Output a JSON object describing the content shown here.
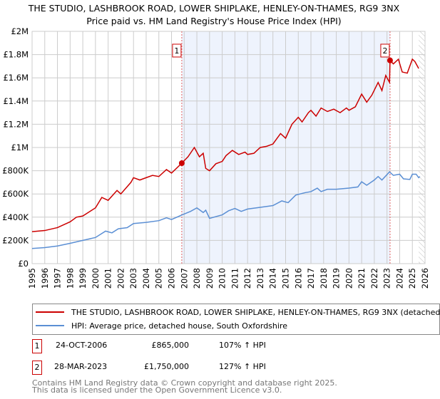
{
  "chart_data": {
    "type": "line",
    "title": "THE STUDIO, LASHBROOK ROAD, LOWER SHIPLAKE, HENLEY-ON-THAMES, RG9 3NX",
    "subtitle": "Price paid vs. HM Land Registry's House Price Index (HPI)",
    "xlim": [
      1995,
      2026
    ],
    "ylim": [
      0,
      2000000
    ],
    "grid": true,
    "x_ticks": [
      "1995",
      "1996",
      "1997",
      "1998",
      "1999",
      "2000",
      "2001",
      "2002",
      "2003",
      "2004",
      "2005",
      "2006",
      "2007",
      "2008",
      "2009",
      "2010",
      "2011",
      "2012",
      "2013",
      "2014",
      "2015",
      "2016",
      "2017",
      "2018",
      "2019",
      "2020",
      "2021",
      "2022",
      "2023",
      "2024",
      "2025",
      "2026"
    ],
    "y_ticks": [
      {
        "v": 0,
        "label": "£0"
      },
      {
        "v": 200000,
        "label": "£200K"
      },
      {
        "v": 400000,
        "label": "£400K"
      },
      {
        "v": 600000,
        "label": "£600K"
      },
      {
        "v": 800000,
        "label": "£800K"
      },
      {
        "v": 1000000,
        "label": "£1M"
      },
      {
        "v": 1200000,
        "label": "£1.2M"
      },
      {
        "v": 1400000,
        "label": "£1.4M"
      },
      {
        "v": 1600000,
        "label": "£1.6M"
      },
      {
        "v": 1800000,
        "label": "£1.8M"
      },
      {
        "v": 2000000,
        "label": "£2M"
      }
    ],
    "shaded_range": [
      2006.81,
      2023.24
    ],
    "hatched_from": 2025.5,
    "series": [
      {
        "name": "THE STUDIO, LASHBROOK ROAD, LOWER SHIPLAKE, HENLEY-ON-THAMES, RG9 3NX (detached",
        "color": "#cc0000",
        "x": [
          1995,
          1996,
          1997,
          1998,
          1998.5,
          1999,
          2000,
          2000.5,
          2001,
          2001.7,
          2002,
          2002.8,
          2003,
          2003.5,
          2004,
          2004.5,
          2005,
          2005.6,
          2006,
          2006.81,
          2007.3,
          2007.8,
          2008.2,
          2008.5,
          2008.7,
          2009,
          2009.5,
          2010,
          2010.3,
          2010.8,
          2011.3,
          2011.8,
          2012,
          2012.5,
          2013,
          2013.5,
          2014,
          2014.6,
          2015,
          2015.5,
          2016,
          2016.3,
          2016.8,
          2017,
          2017.4,
          2017.8,
          2018.3,
          2018.8,
          2019.3,
          2019.8,
          2020,
          2020.5,
          2021,
          2021.4,
          2021.8,
          2022.3,
          2022.6,
          2022.9,
          2023.2,
          2023.24,
          2023.5,
          2023.9,
          2024.2,
          2024.6,
          2025,
          2025.2,
          2025.5
        ],
        "y": [
          275000,
          285000,
          310000,
          360000,
          400000,
          410000,
          480000,
          570000,
          545000,
          630000,
          600000,
          700000,
          740000,
          720000,
          740000,
          760000,
          750000,
          810000,
          780000,
          865000,
          920000,
          1000000,
          920000,
          950000,
          820000,
          800000,
          860000,
          880000,
          930000,
          975000,
          940000,
          960000,
          940000,
          950000,
          1000000,
          1010000,
          1030000,
          1120000,
          1080000,
          1200000,
          1260000,
          1220000,
          1300000,
          1320000,
          1270000,
          1340000,
          1310000,
          1330000,
          1300000,
          1340000,
          1320000,
          1350000,
          1460000,
          1390000,
          1450000,
          1560000,
          1490000,
          1620000,
          1560000,
          1750000,
          1720000,
          1760000,
          1650000,
          1640000,
          1760000,
          1740000,
          1680000
        ]
      },
      {
        "name": "HPI: Average price, detached house, South Oxfordshire",
        "color": "#5b8fd4",
        "x": [
          1995,
          1996,
          1997,
          1998,
          1999,
          2000,
          2000.8,
          2001.3,
          2001.8,
          2002.5,
          2003,
          2004,
          2005,
          2005.6,
          2006,
          2006.8,
          2007.5,
          2008,
          2008.5,
          2008.7,
          2009,
          2010,
          2010.5,
          2011,
          2011.5,
          2012,
          2013,
          2014,
          2014.7,
          2015.2,
          2015.8,
          2016.5,
          2017,
          2017.5,
          2017.8,
          2018.3,
          2019,
          2020,
          2020.7,
          2021,
          2021.4,
          2022,
          2022.3,
          2022.6,
          2023.2,
          2023.5,
          2024,
          2024.3,
          2024.8,
          2025,
          2025.3,
          2025.5,
          2025.6
        ],
        "y": [
          130000,
          138000,
          152000,
          175000,
          200000,
          225000,
          280000,
          265000,
          300000,
          310000,
          345000,
          355000,
          370000,
          395000,
          380000,
          418000,
          450000,
          480000,
          440000,
          460000,
          390000,
          420000,
          455000,
          475000,
          450000,
          470000,
          485000,
          500000,
          540000,
          525000,
          590000,
          610000,
          620000,
          650000,
          620000,
          640000,
          640000,
          650000,
          660000,
          705000,
          675000,
          720000,
          750000,
          720000,
          790000,
          760000,
          770000,
          730000,
          725000,
          770000,
          770000,
          740000,
          750000
        ]
      }
    ],
    "annotations": [
      {
        "label": "1",
        "x": 2006.81,
        "y": 865000
      },
      {
        "label": "2",
        "x": 2023.24,
        "y": 1750000
      }
    ]
  },
  "legend": {
    "red": "THE STUDIO, LASHBROOK ROAD, LOWER SHIPLAKE, HENLEY-ON-THAMES, RG9 3NX (detached",
    "blue": "HPI: Average price, detached house, South Oxfordshire"
  },
  "sales": [
    {
      "num": "1",
      "date": "24-OCT-2006",
      "price": "£865,000",
      "hpi": "107% ↑ HPI"
    },
    {
      "num": "2",
      "date": "28-MAR-2023",
      "price": "£1,750,000",
      "hpi": "127% ↑ HPI"
    }
  ],
  "footer": {
    "line1": "Contains HM Land Registry data © Crown copyright and database right 2025.",
    "line2": "This data is licensed under the Open Government Licence v3.0."
  }
}
